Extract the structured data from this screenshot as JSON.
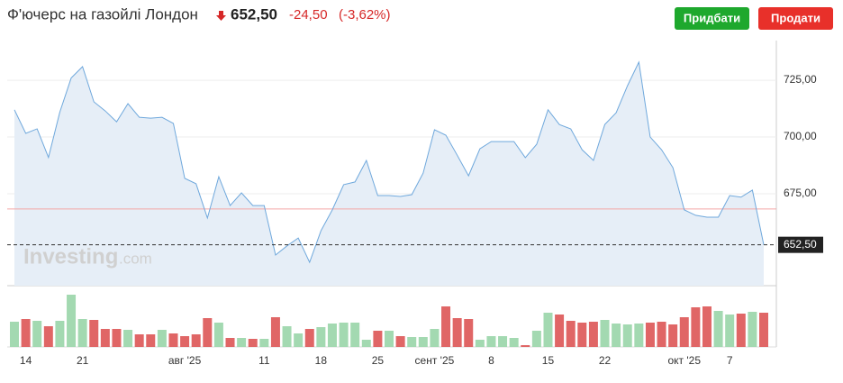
{
  "header": {
    "title": "Ф'ючерс на газойлі Лондон",
    "price": "652,50",
    "change": "-24,50",
    "change_percent": "(-3,62%)"
  },
  "buttons": {
    "buy": "Придбати",
    "sell": "Продати"
  },
  "watermark": {
    "brand": "Investing",
    "suffix": ".com"
  },
  "chart_data": {
    "type": "line",
    "categories": [
      null,
      "14",
      null,
      null,
      null,
      null,
      "21",
      null,
      null,
      null,
      null,
      null,
      null,
      null,
      null,
      "авг '25",
      null,
      null,
      null,
      null,
      null,
      null,
      "11",
      null,
      null,
      null,
      null,
      "18",
      null,
      null,
      null,
      null,
      "25",
      null,
      null,
      null,
      null,
      "сент '25",
      null,
      null,
      null,
      null,
      "8",
      null,
      null,
      null,
      null,
      "15",
      null,
      null,
      null,
      null,
      "22",
      null,
      null,
      null,
      null,
      null,
      null,
      "окт '25",
      null,
      null,
      null,
      "7",
      null,
      null,
      null
    ],
    "series": [
      {
        "color": "#6fa8dc",
        "fill": "#e6eef7",
        "values": [
          712,
          701.6,
          703.6,
          691,
          711,
          726,
          731,
          715.5,
          711.5,
          706.7,
          714.7,
          708.7,
          708.3,
          708.7,
          706,
          681.8,
          679.4,
          664.3,
          682.5,
          669.8,
          675.4,
          669.8,
          669.8,
          648,
          652,
          655.5,
          644.8,
          658.7,
          667.9,
          679,
          680.2,
          689.7,
          674.2,
          674.2,
          673.8,
          674.6,
          684.1,
          703.2,
          700.8,
          692,
          682.9,
          694.8,
          698,
          698,
          698,
          690.9,
          696.8,
          712,
          705.5,
          703.6,
          694.4,
          689.7,
          705.5,
          710.7,
          722.6,
          733,
          700,
          694.4,
          686.5,
          667.9,
          665.5,
          664.7,
          664.7,
          674.2,
          673.5,
          676.6,
          652.5
        ]
      }
    ],
    "volume": {
      "up_color": "#a3d9b1",
      "down_color": "#e06666",
      "ylim": [
        0,
        65
      ],
      "values": [
        28,
        31,
        29,
        23,
        29,
        58,
        31,
        30,
        20,
        20,
        19,
        14,
        14,
        19,
        15,
        12,
        14,
        32,
        27,
        10,
        10,
        9,
        9,
        33,
        23,
        15,
        20,
        22,
        26,
        27,
        27,
        8,
        18,
        18,
        12,
        11,
        11,
        20,
        45,
        32,
        31,
        8,
        12,
        12,
        10,
        2,
        18,
        38,
        36,
        29,
        27,
        28,
        30,
        26,
        25,
        26,
        27,
        28,
        25,
        33,
        44,
        45,
        40,
        36,
        37,
        39,
        38
      ]
    },
    "ylim": [
      634.5,
      742.5
    ],
    "yticks": [
      {
        "value": 675,
        "label": "675,00"
      },
      {
        "value": 700,
        "label": "700,00"
      },
      {
        "value": 725,
        "label": "725,00"
      }
    ],
    "grid": true,
    "reference_line": {
      "value": 668.3,
      "color": "#f4a6a6"
    },
    "last_price": {
      "value": 652.5,
      "label": "652,50"
    }
  }
}
